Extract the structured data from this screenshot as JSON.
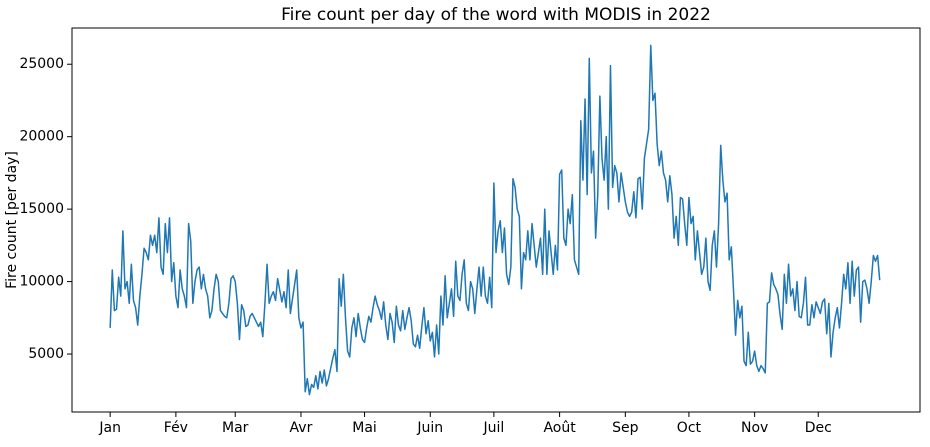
{
  "chart_data": {
    "type": "line",
    "title": "Fire count per day of the word with MODIS in 2022",
    "ylabel": "Fire count [per day]",
    "xlim": [
      -18,
      382
    ],
    "xticks": [
      {
        "value": 0,
        "label": "Jan"
      },
      {
        "value": 31,
        "label": "Fév"
      },
      {
        "value": 59,
        "label": "Mar"
      },
      {
        "value": 90,
        "label": "Avr"
      },
      {
        "value": 120,
        "label": "Mai"
      },
      {
        "value": 151,
        "label": "Juin"
      },
      {
        "value": 181,
        "label": "Juil"
      },
      {
        "value": 212,
        "label": "Août"
      },
      {
        "value": 243,
        "label": "Sep"
      },
      {
        "value": 273,
        "label": "Oct"
      },
      {
        "value": 304,
        "label": "Nov"
      },
      {
        "value": 334,
        "label": "Dec"
      }
    ],
    "ylim": [
      1000,
      27500
    ],
    "yticks": [
      5000,
      10000,
      15000,
      20000,
      25000
    ],
    "grid": false,
    "series": [
      {
        "color": "#1f77b4",
        "values": [
          6800,
          10800,
          8000,
          8100,
          10300,
          9000,
          13500,
          9500,
          10000,
          8500,
          11200,
          8700,
          8200,
          7000,
          9000,
          10500,
          12300,
          12000,
          11500,
          13200,
          12500,
          13200,
          12000,
          14400,
          11000,
          10500,
          14000,
          12000,
          14400,
          10000,
          11300,
          9000,
          8200,
          10800,
          9500,
          9000,
          8200,
          14000,
          12800,
          8500,
          10000,
          10800,
          11000,
          9500,
          10500,
          9500,
          9000,
          7500,
          8000,
          9500,
          10500,
          10000,
          8000,
          7800,
          7600,
          7500,
          8500,
          10200,
          10400,
          10000,
          8500,
          6000,
          8400,
          8000,
          6900,
          7000,
          7600,
          7800,
          7500,
          7200,
          6900,
          7200,
          6200,
          8500,
          11200,
          8500,
          9000,
          9300,
          8700,
          10200,
          9400,
          8600,
          9300,
          8200,
          10800,
          7800,
          8800,
          9800,
          10800,
          7500,
          6800,
          7200,
          2400,
          3300,
          2200,
          2900,
          2700,
          3500,
          2600,
          3800,
          3000,
          3900,
          2800,
          3300,
          4000,
          4700,
          5300,
          3800,
          10200,
          8300,
          10500,
          7500,
          5200,
          4800,
          6800,
          7500,
          6200,
          7800,
          6800,
          6000,
          5800,
          6800,
          7600,
          7200,
          8200,
          9000,
          8400,
          8000,
          7400,
          8600,
          7000,
          6000,
          7800,
          7200,
          5800,
          8300,
          7000,
          6600,
          8000,
          6700,
          7500,
          8200,
          7300,
          5700,
          5500,
          6300,
          5400,
          6900,
          8200,
          6400,
          7300,
          5900,
          6500,
          4800,
          7000,
          5000,
          9000,
          7000,
          10400,
          7500,
          8500,
          9500,
          7600,
          11400,
          9000,
          8700,
          10500,
          11500,
          8500,
          8000,
          10000,
          9500,
          7800,
          9500,
          11000,
          9000,
          11000,
          9000,
          8500,
          10300,
          8200,
          16800,
          12000,
          13500,
          14200,
          12000,
          13700,
          10500,
          9800,
          11000,
          17100,
          16500,
          15000,
          14500,
          9500,
          12000,
          11500,
          13500,
          11500,
          14000,
          12500,
          11000,
          12000,
          13000,
          10500,
          15000,
          10500,
          13500,
          12000,
          10500,
          12500,
          10800,
          17400,
          17700,
          13000,
          12500,
          15000,
          14000,
          16000,
          11500,
          11000,
          10500,
          21100,
          17000,
          22600,
          16000,
          25400,
          17500,
          19000,
          13000,
          16000,
          22800,
          18500,
          17000,
          20000,
          15000,
          24900,
          16500,
          18000,
          17500,
          15500,
          17500,
          16500,
          15500,
          14800,
          14500,
          14800,
          16200,
          14400,
          17100,
          17200,
          15000,
          18500,
          19500,
          20500,
          26300,
          22500,
          23000,
          19500,
          18000,
          19000,
          17500,
          17000,
          15500,
          17300,
          16000,
          13000,
          14500,
          12500,
          15800,
          15700,
          14000,
          12500,
          15800,
          14000,
          14500,
          11500,
          13500,
          12000,
          10500,
          11000,
          13000,
          10000,
          9400,
          12500,
          13500,
          11000,
          14000,
          19400,
          17000,
          15500,
          16100,
          11500,
          12400,
          9500,
          6300,
          8700,
          7500,
          8300,
          4500,
          4200,
          6500,
          4300,
          4500,
          5200,
          4200,
          3800,
          4200,
          4000,
          3700,
          8500,
          8600,
          10600,
          9800,
          9500,
          9100,
          7700,
          6700,
          10500,
          8500,
          11200,
          9000,
          9500,
          8000,
          10000,
          7600,
          7500,
          8500,
          10300,
          7000,
          7000,
          8400,
          7500,
          8600,
          8200,
          7800,
          8600,
          8800,
          6400,
          8500,
          4800,
          6500,
          7500,
          8200,
          6800,
          8500,
          10500,
          9500,
          11300,
          8500,
          11400,
          9000,
          10800,
          11000,
          7200,
          10000,
          10100,
          9500,
          8500,
          10000,
          11800,
          11400,
          11800,
          10100
        ]
      }
    ]
  }
}
